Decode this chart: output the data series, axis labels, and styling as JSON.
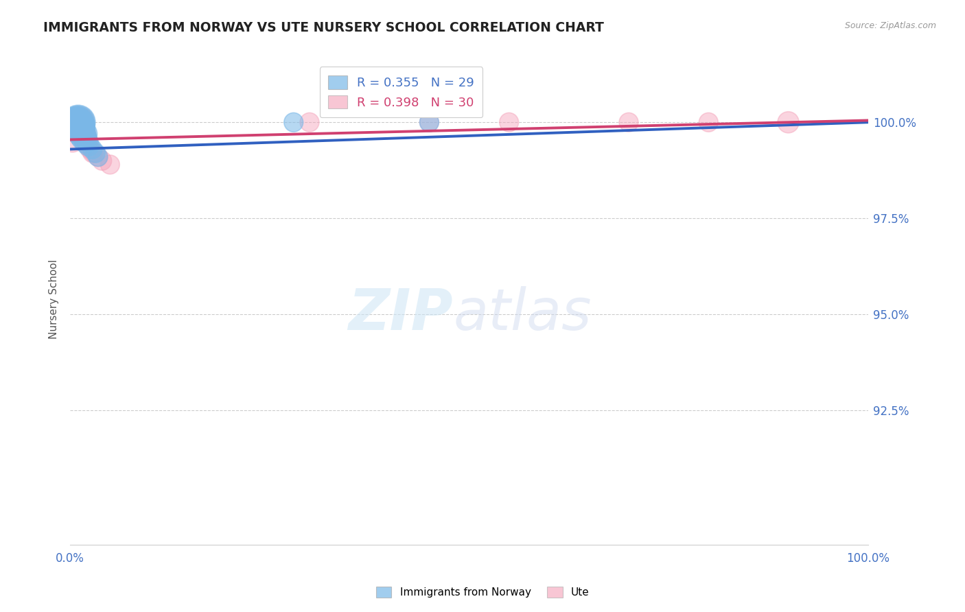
{
  "title": "IMMIGRANTS FROM NORWAY VS UTE NURSERY SCHOOL CORRELATION CHART",
  "source_text": "Source: ZipAtlas.com",
  "ylabel": "Nursery School",
  "xlim": [
    0.0,
    100.0
  ],
  "ylim": [
    89.0,
    101.8
  ],
  "yticks": [
    92.5,
    95.0,
    97.5,
    100.0
  ],
  "ytick_labels": [
    "92.5%",
    "95.0%",
    "97.5%",
    "100.0%"
  ],
  "legend1_label": "Immigrants from Norway",
  "legend2_label": "Ute",
  "r1": 0.355,
  "n1": 29,
  "r2": 0.398,
  "n2": 30,
  "blue_color": "#7ab8e8",
  "pink_color": "#f4a0b8",
  "blue_line_color": "#3060c0",
  "pink_line_color": "#d04070",
  "background_color": "#ffffff",
  "grid_color": "#aaaaaa",
  "title_color": "#222222",
  "axis_label_color": "#555555",
  "tick_color": "#4472c4",
  "blue_scatter_x": [
    0.3,
    0.5,
    0.6,
    0.7,
    0.8,
    0.9,
    1.0,
    1.0,
    1.1,
    1.2,
    1.3,
    1.5,
    1.7,
    2.0,
    2.3,
    2.8,
    3.2,
    3.5,
    1.8,
    0.4,
    0.6,
    0.8,
    1.0,
    1.5,
    2.0,
    28.0,
    45.0,
    0.2,
    1.3
  ],
  "blue_scatter_y": [
    100.0,
    100.0,
    100.0,
    100.0,
    100.0,
    100.0,
    100.0,
    100.0,
    99.9,
    99.9,
    99.8,
    99.7,
    99.6,
    99.5,
    99.4,
    99.3,
    99.2,
    99.1,
    99.7,
    100.0,
    100.0,
    100.0,
    100.0,
    99.8,
    99.6,
    100.0,
    100.0,
    100.0,
    99.8
  ],
  "blue_scatter_sizes": [
    30,
    35,
    40,
    45,
    50,
    55,
    60,
    65,
    55,
    50,
    45,
    40,
    35,
    30,
    25,
    20,
    20,
    20,
    35,
    25,
    30,
    40,
    50,
    35,
    25,
    20,
    20,
    20,
    30
  ],
  "pink_scatter_x": [
    0.3,
    0.5,
    0.6,
    0.7,
    0.8,
    0.9,
    1.0,
    1.1,
    1.2,
    1.4,
    1.6,
    1.8,
    2.0,
    2.2,
    2.5,
    3.0,
    3.5,
    4.0,
    5.0,
    30.0,
    45.0,
    55.0,
    70.0,
    80.0,
    90.0,
    1.3,
    2.8,
    0.4,
    1.5,
    0.6
  ],
  "pink_scatter_y": [
    99.5,
    99.8,
    100.0,
    100.0,
    100.0,
    100.0,
    100.0,
    100.0,
    99.9,
    99.8,
    99.7,
    99.6,
    99.5,
    99.4,
    99.3,
    99.2,
    99.1,
    99.0,
    98.9,
    100.0,
    100.0,
    100.0,
    100.0,
    100.0,
    100.0,
    99.9,
    99.2,
    100.0,
    99.8,
    100.0
  ],
  "pink_scatter_sizes": [
    25,
    30,
    35,
    40,
    45,
    50,
    55,
    50,
    45,
    40,
    35,
    30,
    25,
    20,
    20,
    20,
    20,
    20,
    20,
    20,
    20,
    20,
    20,
    20,
    25,
    35,
    20,
    30,
    35,
    40
  ],
  "blue_line_x0": 0.0,
  "blue_line_y0": 99.3,
  "blue_line_x1": 100.0,
  "blue_line_y1": 100.0,
  "pink_line_x0": 0.0,
  "pink_line_y0": 99.55,
  "pink_line_x1": 100.0,
  "pink_line_y1": 100.05
}
